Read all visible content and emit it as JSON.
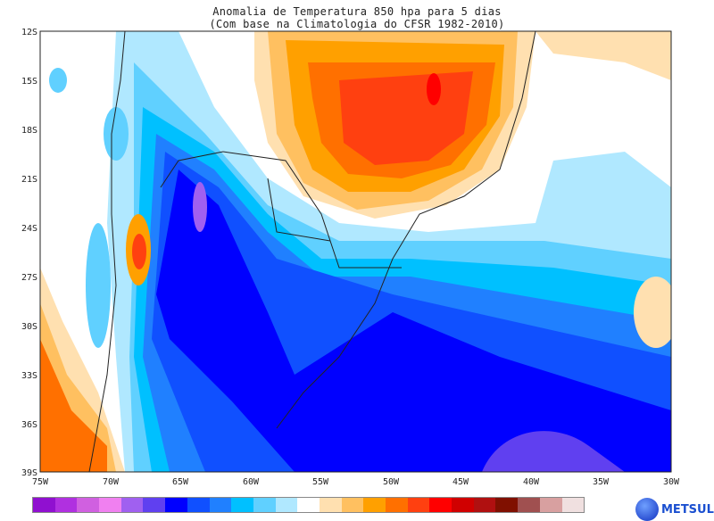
{
  "title": "Anomalia de Temperatura 850 hpa para 5 dias",
  "subtitle": "(Com base na Climatologia do CFSR 1982-2010)",
  "lat_labels": [
    "12S",
    "15S",
    "18S",
    "21S",
    "24S",
    "27S",
    "30S",
    "33S",
    "36S",
    "39S"
  ],
  "lon_labels": [
    "75W",
    "70W",
    "65W",
    "60W",
    "55W",
    "50W",
    "45W",
    "40W",
    "35W",
    "30W"
  ],
  "colorbar": [
    "#9010d0",
    "#b030e0",
    "#d060e0",
    "#f080f0",
    "#a060f0",
    "#6040f0",
    "#0000ff",
    "#1050ff",
    "#2080ff",
    "#00c0ff",
    "#60d0ff",
    "#b0e8ff",
    "#ffffff",
    "#ffe0b0",
    "#ffc060",
    "#ffa000",
    "#ff7000",
    "#ff4010",
    "#ff0000",
    "#d00000",
    "#b01010",
    "#801000",
    "#a05050",
    "#d8a0a0",
    "#f0e0e0"
  ],
  "logo": "METSUL"
}
